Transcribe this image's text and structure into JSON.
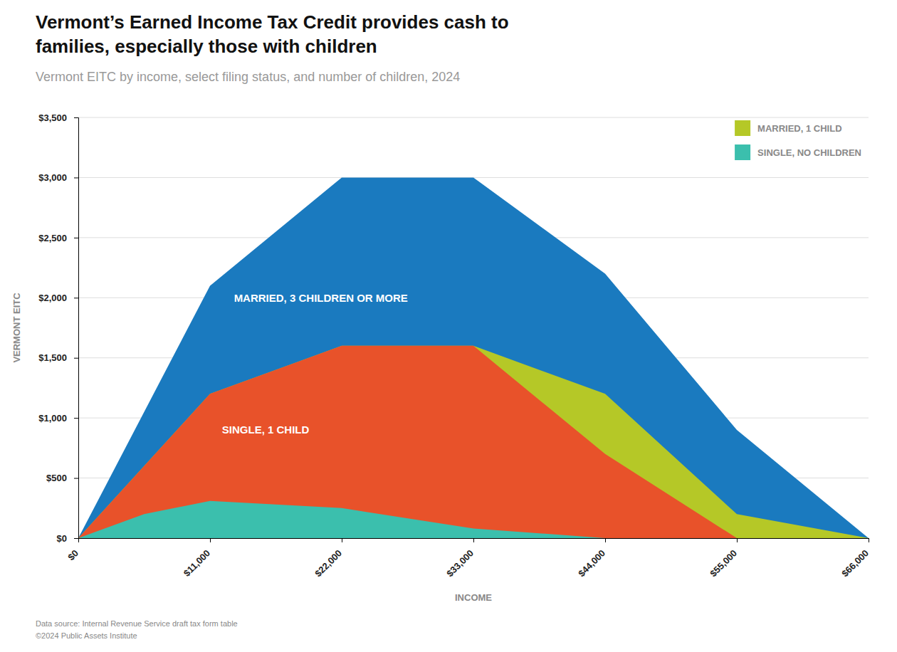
{
  "chart_data": {
    "type": "area",
    "title": "Vermont’s Earned Income Tax Credit provides cash to\nfamilies, especially those with children",
    "subtitle": "Vermont EITC by income, select filing status, and number of children, 2024",
    "x_label": "INCOME",
    "y_label": "VERMONT EITC",
    "footnotes": [
      "Data source: Internal Revenue Service draft tax form table",
      "©2024 Public Assets Institute"
    ],
    "xlim": [
      0,
      66000
    ],
    "ylim": [
      0,
      3500
    ],
    "xticks": [
      {
        "value": 0,
        "label": "$0"
      },
      {
        "value": 11000,
        "label": "$11,000"
      },
      {
        "value": 22000,
        "label": "$22,000"
      },
      {
        "value": 33000,
        "label": "$33,000"
      },
      {
        "value": 44000,
        "label": "$44,000"
      },
      {
        "value": 55000,
        "label": "$55,000"
      },
      {
        "value": 66000,
        "label": "$66,000"
      }
    ],
    "yticks": [
      {
        "value": 0,
        "label": "$0"
      },
      {
        "value": 500,
        "label": "$500"
      },
      {
        "value": 1000,
        "label": "$1,000"
      },
      {
        "value": 1500,
        "label": "$1,500"
      },
      {
        "value": 2000,
        "label": "$2,000"
      },
      {
        "value": 2500,
        "label": "$2,500"
      },
      {
        "value": 3000,
        "label": "$3,000"
      },
      {
        "value": 3500,
        "label": "$3,500"
      }
    ],
    "grid": true,
    "legend": "upper right",
    "series": [
      {
        "color": "#1a7abf",
        "x": [
          0,
          11000,
          22000,
          33000,
          44000,
          55000,
          66000
        ],
        "values": [
          0,
          2100,
          3000,
          3000,
          2200,
          900,
          0
        ]
      },
      {
        "name": "MARRIED, 1 CHILD",
        "color": "#b5c827",
        "x": [
          0,
          11000,
          22000,
          33000,
          44000,
          55000,
          66000
        ],
        "values": [
          0,
          1200,
          1600,
          1600,
          1200,
          200,
          0
        ]
      },
      {
        "color": "#e8522a",
        "x": [
          0,
          11000,
          22000,
          33000,
          44000,
          55000,
          66000
        ],
        "values": [
          0,
          1200,
          1600,
          1600,
          700,
          0,
          0
        ]
      },
      {
        "name": "SINGLE, NO CHILDREN",
        "color": "#3bbfad",
        "x": [
          0,
          5500,
          11000,
          22000,
          33000,
          44000,
          55000,
          66000
        ],
        "values": [
          0,
          200,
          310,
          250,
          80,
          0,
          0,
          0
        ]
      }
    ],
    "annotations": [
      {
        "text": "MARRIED, 3 CHILDREN OR MORE",
        "x": 13000,
        "y": 2000
      },
      {
        "text": "SINGLE, 1 CHILD",
        "x": 12000,
        "y": 900
      }
    ]
  }
}
